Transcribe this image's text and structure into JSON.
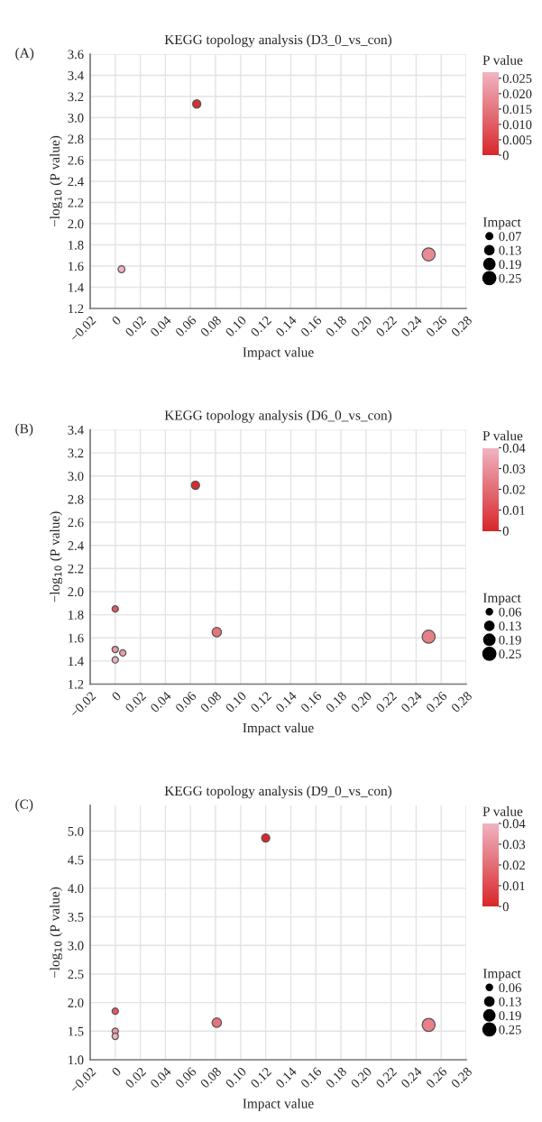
{
  "chart_data": [
    {
      "type": "bubble",
      "title": "KEGG topology analysis (D3_0_vs_con)",
      "xlabel": "Impact value",
      "ylabel": "−log$_{10}$ (P value)",
      "clabel": "P value",
      "legend_title": "Impact",
      "annotations": [
        "(A)"
      ],
      "x": [
        0.005,
        0.065,
        0.25
      ],
      "values": [
        1.57,
        3.13,
        1.71
      ],
      "sizes": [
        0.07,
        0.1,
        0.25
      ],
      "cvalues": [
        0.027,
        0.001,
        0.019
      ],
      "size_legend": [
        0.07,
        0.13,
        0.19,
        0.25
      ],
      "xlim": [
        -0.02,
        0.28
      ],
      "xticks": [
        {
          "value": -0.02,
          "label": "−0.02"
        },
        0,
        0.02,
        0.04,
        0.06,
        0.08,
        {
          "value": 0.1,
          "label": "0.10"
        },
        0.12,
        0.14,
        0.16,
        0.18,
        {
          "value": 0.2,
          "label": "0.20"
        },
        0.22,
        0.24,
        0.26,
        0.28
      ],
      "ylim": [
        1.2,
        3.6
      ],
      "yticks": [
        1.2,
        1.4,
        1.6,
        1.8,
        {
          "value": 2,
          "label": "2.0"
        },
        2.2,
        2.4,
        2.6,
        2.8,
        {
          "value": 3,
          "label": "3.0"
        },
        3.2,
        3.4,
        3.6
      ],
      "clim": [
        0,
        0.027
      ],
      "cticks": [
        0,
        0.005,
        {
          "value": 0.01,
          "label": "0.010"
        },
        0.015,
        {
          "value": 0.02,
          "label": "0.020"
        },
        0.025
      ],
      "grid": true
    },
    {
      "type": "bubble",
      "title": "KEGG topology analysis (D6_0_vs_con)",
      "xlabel": "Impact value",
      "ylabel": "−log$_{10}$ (P value)",
      "clabel": "P value",
      "legend_title": "Impact",
      "annotations": [
        "(B)"
      ],
      "x": [
        0,
        0,
        0.006,
        0,
        0.064,
        0.081,
        0.25
      ],
      "values": [
        1.85,
        1.5,
        1.47,
        1.41,
        2.92,
        1.65,
        1.61
      ],
      "sizes": [
        0.06,
        0.06,
        0.06,
        0.06,
        0.1,
        0.13,
        0.25
      ],
      "cvalues": [
        0.014,
        0.032,
        0.034,
        0.039,
        0.001,
        0.022,
        0.025
      ],
      "size_legend": [
        0.06,
        0.13,
        0.19,
        0.25
      ],
      "xlim": [
        -0.02,
        0.28
      ],
      "xticks": [
        {
          "value": -0.02,
          "label": "−0.02"
        },
        0,
        0.02,
        0.04,
        0.06,
        0.08,
        {
          "value": 0.1,
          "label": "0.10"
        },
        0.12,
        0.14,
        0.16,
        0.18,
        {
          "value": 0.2,
          "label": "0.20"
        },
        0.22,
        0.24,
        0.26,
        0.28
      ],
      "ylim": [
        1.2,
        3.4
      ],
      "yticks": [
        1.2,
        1.4,
        1.6,
        1.8,
        {
          "value": 2,
          "label": "2.0"
        },
        2.2,
        2.4,
        2.6,
        2.8,
        {
          "value": 3,
          "label": "3.0"
        },
        3.2,
        3.4
      ],
      "clim": [
        0,
        0.04
      ],
      "cticks": [
        0,
        0.01,
        0.02,
        0.03,
        0.04
      ],
      "grid": true
    },
    {
      "type": "bubble",
      "title": "KEGG topology analysis (D9_0_vs_con)",
      "xlabel": "Impact value",
      "ylabel": "−log$_{10}$ (P value)",
      "clabel": "P value",
      "legend_title": "Impact",
      "annotations": [
        "(C)"
      ],
      "x": [
        0,
        0,
        0,
        0.12,
        0.081,
        0.25
      ],
      "values": [
        1.85,
        1.5,
        1.41,
        4.88,
        1.65,
        1.61
      ],
      "sizes": [
        0.06,
        0.06,
        0.06,
        0.1,
        0.13,
        0.25
      ],
      "cvalues": [
        0.014,
        0.032,
        0.039,
        0.0,
        0.022,
        0.025
      ],
      "size_legend": [
        0.06,
        0.13,
        0.19,
        0.25
      ],
      "xlim": [
        -0.02,
        0.28
      ],
      "xticks": [
        {
          "value": -0.02,
          "label": "−0.02"
        },
        0,
        0.02,
        0.04,
        0.06,
        0.08,
        {
          "value": 0.1,
          "label": "0.10"
        },
        0.12,
        0.14,
        0.16,
        0.18,
        {
          "value": 0.2,
          "label": "0.20"
        },
        0.22,
        0.24,
        0.26,
        0.28
      ],
      "ylim": [
        1.0,
        5.45
      ],
      "yticks": [
        {
          "value": 1,
          "label": "1.0"
        },
        1.5,
        {
          "value": 2,
          "label": "2.0"
        },
        2.5,
        {
          "value": 3,
          "label": "3.0"
        },
        3.5,
        {
          "value": 4,
          "label": "4.0"
        },
        4.5,
        {
          "value": 5,
          "label": "5.0"
        }
      ],
      "clim": [
        0,
        0.04
      ],
      "cticks": [
        0,
        0.01,
        0.02,
        0.03,
        0.04
      ],
      "grid": true
    }
  ]
}
